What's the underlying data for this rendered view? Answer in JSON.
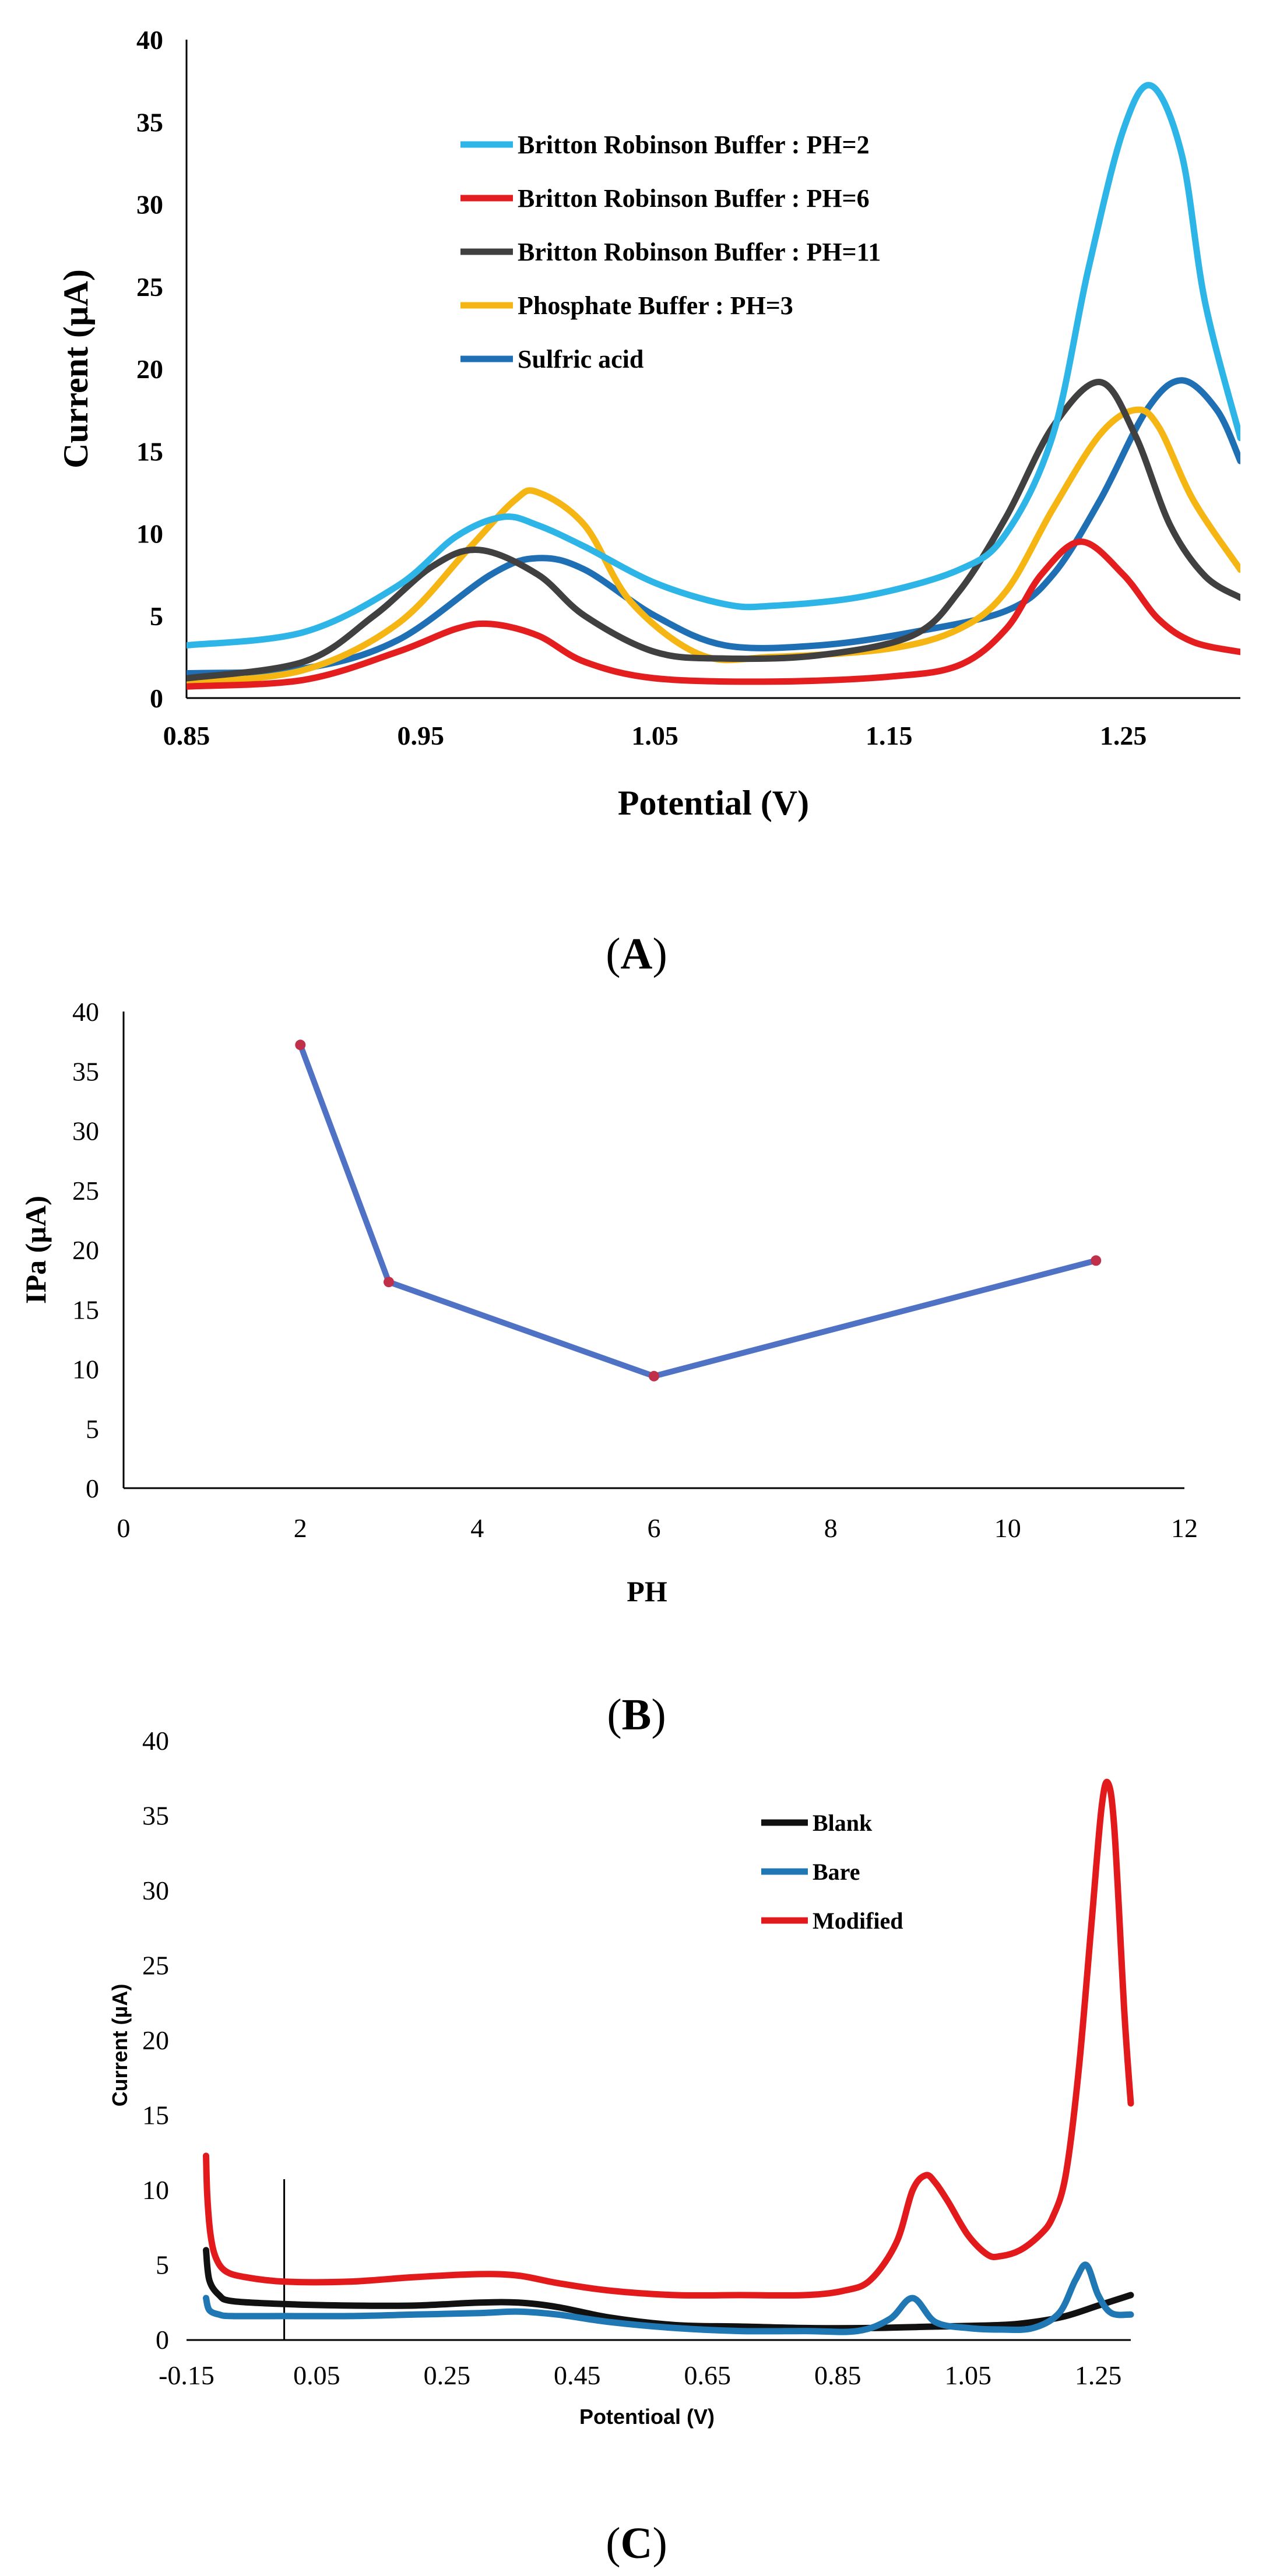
{
  "panels": {
    "a_label": "A",
    "b_label": "B",
    "c_label": "C"
  },
  "chart_data": [
    {
      "id": "A",
      "type": "line",
      "xlabel": "Potential (V)",
      "ylabel": "Current (µA)",
      "xlim": [
        0.85,
        1.3
      ],
      "ylim": [
        0,
        40
      ],
      "xticks": [
        "0.85",
        "0.95",
        "1.05",
        "1.15",
        "1.25"
      ],
      "yticks": [
        "0",
        "5",
        "10",
        "15",
        "20",
        "25",
        "30",
        "35",
        "40"
      ],
      "legend_position": "top-center",
      "series": [
        {
          "name": "Britton Robinson Buffer : PH=2",
          "color": "#2EB5E8",
          "x": [
            0.85,
            0.9,
            0.94,
            0.965,
            0.985,
            1.0,
            1.02,
            1.05,
            1.08,
            1.1,
            1.14,
            1.18,
            1.2,
            1.22,
            1.235,
            1.25,
            1.262,
            1.275,
            1.285,
            1.3
          ],
          "y": [
            3.2,
            4.0,
            6.8,
            9.8,
            11.0,
            10.5,
            9.2,
            7.0,
            5.7,
            5.6,
            6.2,
            7.8,
            10.0,
            16.0,
            26.0,
            34.5,
            37.2,
            33.0,
            24.0,
            15.8
          ]
        },
        {
          "name": "Britton Robinson Buffer : PH=6",
          "color": "#E41E1E",
          "x": [
            0.85,
            0.9,
            0.94,
            0.965,
            0.98,
            1.0,
            1.02,
            1.05,
            1.1,
            1.15,
            1.18,
            1.2,
            1.215,
            1.232,
            1.25,
            1.265,
            1.28,
            1.3
          ],
          "y": [
            0.7,
            1.1,
            2.8,
            4.2,
            4.5,
            3.8,
            2.2,
            1.2,
            1.0,
            1.3,
            2.0,
            4.2,
            7.5,
            9.5,
            7.5,
            4.8,
            3.4,
            2.8
          ]
        },
        {
          "name": "Britton Robinson Buffer : PH=11",
          "color": "#404040",
          "x": [
            0.85,
            0.9,
            0.93,
            0.955,
            0.975,
            1.0,
            1.02,
            1.05,
            1.08,
            1.12,
            1.16,
            1.18,
            1.2,
            1.22,
            1.24,
            1.255,
            1.27,
            1.285,
            1.3
          ],
          "y": [
            1.2,
            2.2,
            5.0,
            8.0,
            9.0,
            7.5,
            5.0,
            2.8,
            2.4,
            2.6,
            3.8,
            6.5,
            11.0,
            16.5,
            19.2,
            16.0,
            10.5,
            7.4,
            6.1
          ]
        },
        {
          "name": "Phosphate Buffer : PH=3",
          "color": "#F5B513",
          "x": [
            0.85,
            0.9,
            0.94,
            0.97,
            0.99,
            1.0,
            1.02,
            1.04,
            1.07,
            1.1,
            1.15,
            1.18,
            1.2,
            1.22,
            1.24,
            1.255,
            1.265,
            1.28,
            1.3
          ],
          "y": [
            0.9,
            1.7,
            4.5,
            9.0,
            12.0,
            12.5,
            10.5,
            5.8,
            2.6,
            2.5,
            3.0,
            4.2,
            6.5,
            11.5,
            16.0,
            17.5,
            16.5,
            12.0,
            7.8
          ]
        },
        {
          "name": "Sulfric acid",
          "color": "#1F6FB5",
          "x": [
            0.85,
            0.9,
            0.94,
            0.98,
            1.0,
            1.02,
            1.05,
            1.08,
            1.12,
            1.16,
            1.2,
            1.22,
            1.24,
            1.26,
            1.275,
            1.29,
            1.3
          ],
          "y": [
            1.5,
            1.8,
            3.5,
            7.5,
            8.5,
            7.8,
            5.0,
            3.2,
            3.2,
            4.0,
            5.3,
            7.5,
            12.0,
            17.5,
            19.3,
            17.5,
            14.4
          ]
        }
      ]
    },
    {
      "id": "B",
      "type": "line",
      "xlabel": "PH",
      "ylabel": "IPa (µA)",
      "xlim": [
        0,
        12
      ],
      "ylim": [
        0,
        40
      ],
      "xticks": [
        "0",
        "2",
        "4",
        "6",
        "8",
        "10",
        "12"
      ],
      "yticks": [
        "0",
        "5",
        "10",
        "15",
        "20",
        "25",
        "30",
        "35",
        "40"
      ],
      "series": [
        {
          "name": "IPa",
          "color": "#4F72C4",
          "marker_color": "#C0304A",
          "x": [
            2,
            3,
            6,
            11
          ],
          "y": [
            37.2,
            17.3,
            9.4,
            19.1
          ]
        }
      ]
    },
    {
      "id": "C",
      "type": "line",
      "xlabel": "Potentioal (V)",
      "ylabel": "Current  (µA)",
      "xlim": [
        -0.15,
        1.3
      ],
      "ylim": [
        0,
        40
      ],
      "yaxis_at_x": 0,
      "xticks": [
        "-0.15",
        "0.05",
        "0.25",
        "0.45",
        "0.65",
        "0.85",
        "1.05",
        "1.25"
      ],
      "yticks": [
        "0",
        "5",
        "10",
        "15",
        "20",
        "25",
        "30",
        "35",
        "40"
      ],
      "legend_position": "top-right",
      "series": [
        {
          "name": "Blank",
          "color": "#111111",
          "x": [
            -0.12,
            -0.115,
            -0.1,
            -0.08,
            0.0,
            0.1,
            0.2,
            0.3,
            0.36,
            0.42,
            0.5,
            0.6,
            0.7,
            0.8,
            0.9,
            1.0,
            1.1,
            1.15,
            1.2,
            1.25,
            1.3
          ],
          "y": [
            6.0,
            4.0,
            3.0,
            2.6,
            2.4,
            2.3,
            2.3,
            2.5,
            2.5,
            2.2,
            1.5,
            1.0,
            0.9,
            0.8,
            0.8,
            0.9,
            1.0,
            1.2,
            1.6,
            2.3,
            3.0
          ]
        },
        {
          "name": "Bare",
          "color": "#1F78B4",
          "x": [
            -0.12,
            -0.115,
            -0.1,
            -0.08,
            0.0,
            0.1,
            0.2,
            0.3,
            0.36,
            0.42,
            0.5,
            0.6,
            0.7,
            0.8,
            0.88,
            0.93,
            0.965,
            1.0,
            1.05,
            1.1,
            1.15,
            1.19,
            1.215,
            1.232,
            1.25,
            1.27,
            1.3
          ],
          "y": [
            2.8,
            2.0,
            1.7,
            1.6,
            1.6,
            1.6,
            1.7,
            1.8,
            1.9,
            1.7,
            1.2,
            0.8,
            0.6,
            0.6,
            0.6,
            1.4,
            2.8,
            1.2,
            0.8,
            0.7,
            0.8,
            1.8,
            4.0,
            5.0,
            3.0,
            1.8,
            1.7
          ]
        },
        {
          "name": "Modified",
          "color": "#E31A1C",
          "x": [
            -0.12,
            -0.118,
            -0.113,
            -0.105,
            -0.09,
            -0.06,
            0.0,
            0.1,
            0.2,
            0.3,
            0.36,
            0.42,
            0.5,
            0.6,
            0.7,
            0.8,
            0.86,
            0.9,
            0.94,
            0.965,
            0.985,
            1.0,
            1.02,
            1.05,
            1.08,
            1.1,
            1.13,
            1.16,
            1.18,
            1.2,
            1.22,
            1.24,
            1.255,
            1.265,
            1.275,
            1.29,
            1.3
          ],
          "y": [
            12.3,
            9.5,
            7.0,
            5.5,
            4.6,
            4.2,
            3.9,
            3.9,
            4.2,
            4.4,
            4.3,
            3.8,
            3.3,
            3.0,
            3.0,
            3.0,
            3.3,
            4.0,
            6.5,
            10.0,
            11.0,
            10.5,
            9.2,
            7.0,
            5.7,
            5.6,
            6.0,
            7.0,
            8.2,
            11.0,
            18.0,
            28.0,
            35.5,
            37.2,
            34.0,
            22.0,
            15.8
          ]
        }
      ]
    }
  ]
}
